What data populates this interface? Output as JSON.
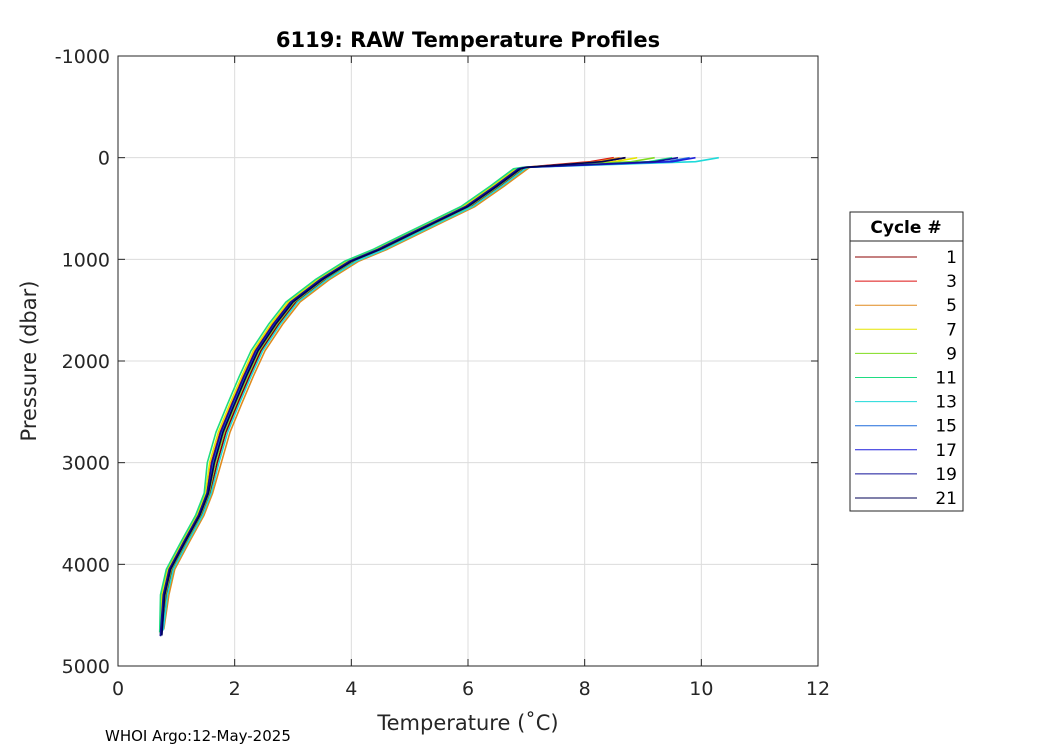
{
  "chart_data": {
    "type": "line",
    "title": "6119: RAW Temperature Profiles",
    "xlabel": "Temperature (˚C)",
    "ylabel": "Pressure (dbar)",
    "xlim": [
      0,
      12
    ],
    "ylim": [
      -1000,
      5000
    ],
    "y_reversed": true,
    "grid": true,
    "x_ticks": [
      0,
      2,
      4,
      6,
      8,
      10,
      12
    ],
    "x_tick_labels": [
      "0",
      "2",
      "4",
      "6",
      "8",
      "10",
      "12"
    ],
    "y_ticks": [
      -1000,
      0,
      1000,
      2000,
      3000,
      4000,
      5000
    ],
    "y_tick_labels": [
      "-1000",
      "0",
      "1000",
      "2000",
      "3000",
      "4000",
      "5000"
    ],
    "legend": {
      "title": "Cycle #",
      "placement": "right-outside",
      "entries": [
        "1",
        "3",
        "5",
        "7",
        "9",
        "11",
        "13",
        "15",
        "17",
        "19",
        "21"
      ]
    },
    "base_profile": [
      {
        "temp": 6.8,
        "pres": 5
      },
      {
        "temp": 6.9,
        "pres": 110
      },
      {
        "temp": 6.5,
        "pres": 280
      },
      {
        "temp": 6.0,
        "pres": 480
      },
      {
        "temp": 5.5,
        "pres": 620
      },
      {
        "temp": 5.0,
        "pres": 760
      },
      {
        "temp": 4.5,
        "pres": 900
      },
      {
        "temp": 4.0,
        "pres": 1020
      },
      {
        "temp": 3.5,
        "pres": 1200
      },
      {
        "temp": 3.0,
        "pres": 1420
      },
      {
        "temp": 2.7,
        "pres": 1640
      },
      {
        "temp": 2.4,
        "pres": 1900
      },
      {
        "temp": 2.2,
        "pres": 2150
      },
      {
        "temp": 2.0,
        "pres": 2420
      },
      {
        "temp": 1.8,
        "pres": 2700
      },
      {
        "temp": 1.65,
        "pres": 3000
      },
      {
        "temp": 1.55,
        "pres": 3300
      },
      {
        "temp": 1.4,
        "pres": 3520
      },
      {
        "temp": 1.15,
        "pres": 3780
      },
      {
        "temp": 0.9,
        "pres": 4050
      },
      {
        "temp": 0.8,
        "pres": 4300
      },
      {
        "temp": 0.75,
        "pres": 4700
      }
    ],
    "series": [
      {
        "name": "1",
        "color": "#8b0000",
        "temp_offset": 0.05,
        "surface_temp": 8.7,
        "max_pres": 4650
      },
      {
        "name": "3",
        "color": "#dd1111",
        "temp_offset": -0.05,
        "surface_temp": 8.5,
        "max_pres": 4680
      },
      {
        "name": "5",
        "color": "#e08a1e",
        "temp_offset": 0.12,
        "surface_temp": 8.6,
        "max_pres": 4640
      },
      {
        "name": "7",
        "color": "#e6e600",
        "temp_offset": -0.08,
        "surface_temp": 8.9,
        "max_pres": 4690
      },
      {
        "name": "9",
        "color": "#7fdc1e",
        "temp_offset": 0.02,
        "surface_temp": 9.2,
        "max_pres": 4660
      },
      {
        "name": "11",
        "color": "#1fdc82",
        "temp_offset": -0.12,
        "surface_temp": 9.5,
        "max_pres": 4670
      },
      {
        "name": "13",
        "color": "#1fdada",
        "temp_offset": 0.08,
        "surface_temp": 10.3,
        "max_pres": 4650
      },
      {
        "name": "15",
        "color": "#1f6bdc",
        "temp_offset": -0.02,
        "surface_temp": 9.8,
        "max_pres": 4700
      },
      {
        "name": "17",
        "color": "#1f1fdc",
        "temp_offset": 0.0,
        "surface_temp": 9.9,
        "max_pres": 4690
      },
      {
        "name": "19",
        "color": "#111199",
        "temp_offset": -0.04,
        "surface_temp": 9.6,
        "max_pres": 4700
      },
      {
        "name": "21",
        "color": "#000055",
        "temp_offset": 0.0,
        "surface_temp": 8.7,
        "max_pres": 4700
      }
    ]
  },
  "footer": {
    "text": "WHOI Argo:12-May-2025"
  }
}
